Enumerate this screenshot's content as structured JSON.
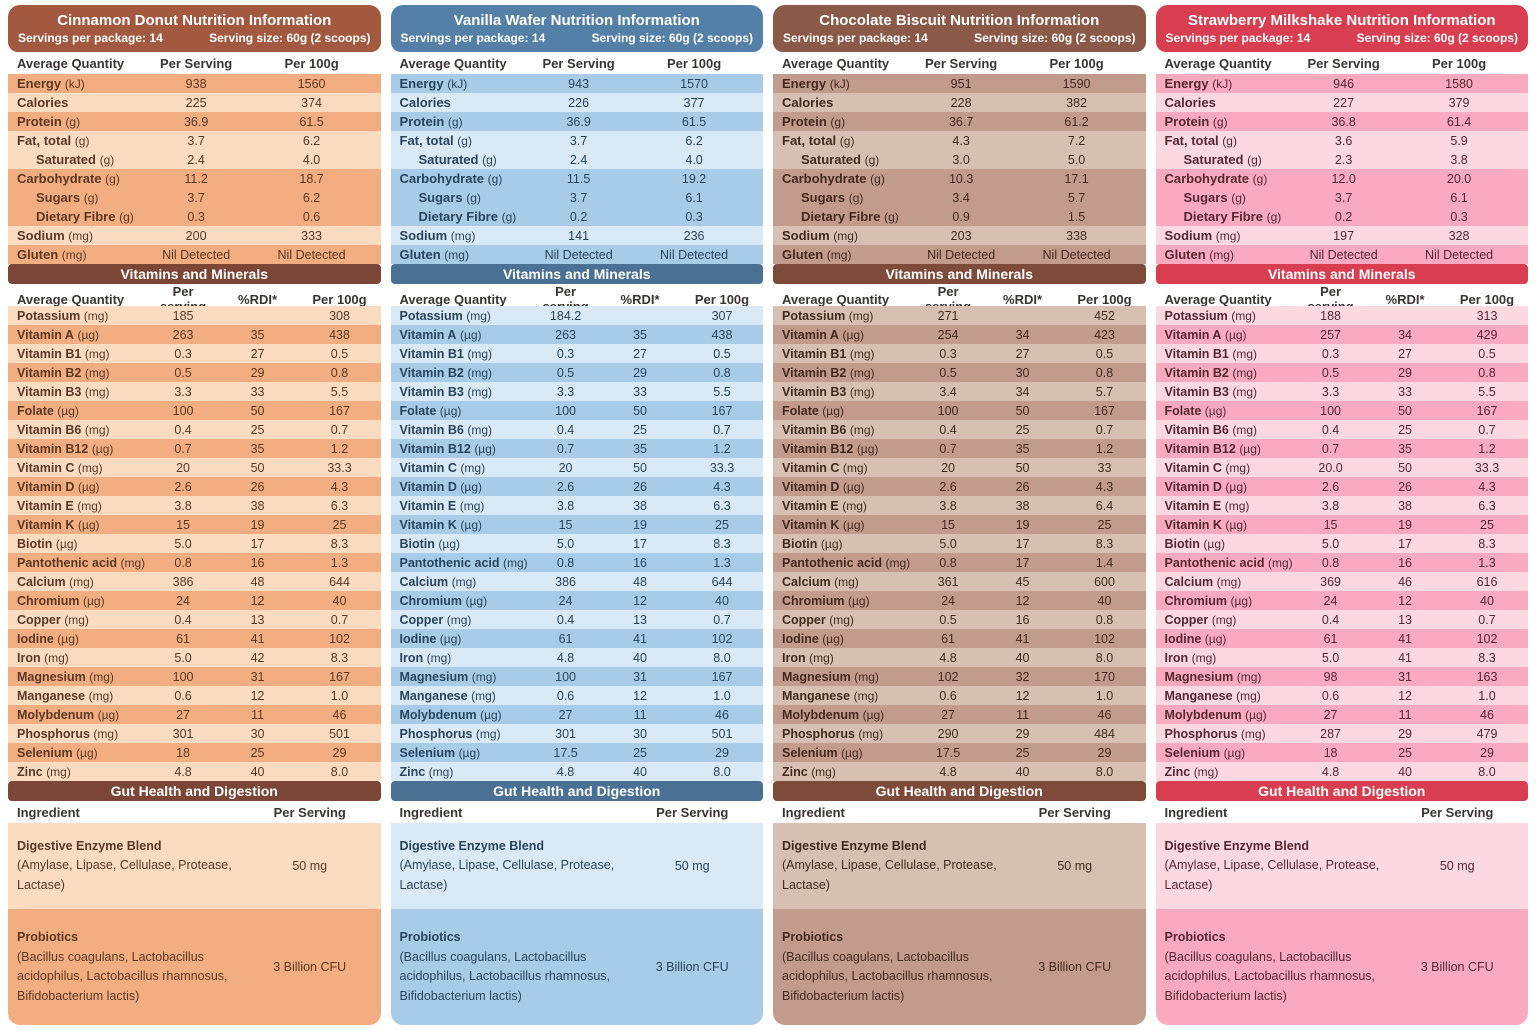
{
  "shared": {
    "servings": "Servings per package: 14",
    "serving_size": "Serving size: 60g (2 scoops)",
    "main_table": {
      "headers": [
        "Average Quantity",
        "Per Serving",
        "Per 100g"
      ],
      "rows": [
        {
          "name": "Energy",
          "unit": "(kJ)",
          "indent": false,
          "band": "dark"
        },
        {
          "name": "Calories",
          "unit": "",
          "indent": false,
          "band": "light"
        },
        {
          "name": "Protein",
          "unit": "(g)",
          "indent": false,
          "band": "dark"
        },
        {
          "name": "Fat, total",
          "unit": "(g)",
          "indent": false,
          "band": "light"
        },
        {
          "name": "Saturated",
          "unit": "(g)",
          "indent": true,
          "band": "light"
        },
        {
          "name": "Carbohydrate",
          "unit": "(g)",
          "indent": false,
          "band": "dark"
        },
        {
          "name": "Sugars",
          "unit": "(g)",
          "indent": true,
          "band": "dark"
        },
        {
          "name": "Dietary Fibre",
          "unit": "(g)",
          "indent": true,
          "band": "dark"
        },
        {
          "name": "Sodium",
          "unit": "(mg)",
          "indent": false,
          "band": "light"
        },
        {
          "name": "Gluten",
          "unit": "(mg)",
          "indent": false,
          "band": "dark"
        }
      ]
    },
    "vitamins_table": {
      "title": "Vitamins and Minerals",
      "headers": [
        "Average Quantity",
        "Per serving",
        "%RDI*",
        "Per 100g"
      ],
      "rows": [
        {
          "name": "Potassium",
          "unit": "(mg)"
        },
        {
          "name": "Vitamin A",
          "unit": "(µg)"
        },
        {
          "name": "Vitamin B1",
          "unit": "(mg)"
        },
        {
          "name": "Vitamin B2",
          "unit": "(mg)"
        },
        {
          "name": "Vitamin B3",
          "unit": "(mg)"
        },
        {
          "name": "Folate",
          "unit": "(µg)"
        },
        {
          "name": "Vitamin B6",
          "unit": "(mg)"
        },
        {
          "name": "Vitamin B12",
          "unit": "(µg)"
        },
        {
          "name": "Vitamin C",
          "unit": "(mg)"
        },
        {
          "name": "Vitamin D",
          "unit": "(µg)"
        },
        {
          "name": "Vitamin E",
          "unit": "(mg)"
        },
        {
          "name": "Vitamin K",
          "unit": "(µg)"
        },
        {
          "name": "Biotin",
          "unit": "(µg)"
        },
        {
          "name": "Pantothenic acid",
          "unit": "(mg)"
        },
        {
          "name": "Calcium",
          "unit": "(mg)"
        },
        {
          "name": "Chromium",
          "unit": "(µg)"
        },
        {
          "name": "Copper",
          "unit": "(mg)"
        },
        {
          "name": "Iodine",
          "unit": "(µg)"
        },
        {
          "name": "Iron",
          "unit": "(mg)"
        },
        {
          "name": "Magnesium",
          "unit": "(mg)"
        },
        {
          "name": "Manganese",
          "unit": "(mg)"
        },
        {
          "name": "Molybdenum",
          "unit": "(µg)"
        },
        {
          "name": "Phosphorus",
          "unit": "(mg)"
        },
        {
          "name": "Selenium",
          "unit": "(µg)"
        },
        {
          "name": "Zinc",
          "unit": "(mg)"
        }
      ]
    },
    "gut_table": {
      "title": "Gut Health and Digestion",
      "headers": [
        "Ingredient",
        "Per Serving"
      ],
      "rows": [
        {
          "name": "Digestive Enzyme Blend",
          "detail": "(Amylase, Lipase, Cellulase, Protease, Lactase)",
          "value": "50 mg"
        },
        {
          "name": "Probiotics",
          "detail": "(Bacillus coagulans, Lactobacillus acidophilus, Lactobacillus rhamnosus, Bifidobacterium lactis)",
          "value": "3 Billion CFU"
        }
      ]
    }
  },
  "panels": [
    {
      "id": "cinnamon-donut",
      "title": "Cinnamon Donut Nutrition Information",
      "colors": {
        "header": "#A2593F",
        "section": "#7B4636",
        "row_light": "#FBDCC1",
        "row_dark": "#F2AE81",
        "text": "#5C3823"
      },
      "main_values": [
        [
          "938",
          "1560"
        ],
        [
          "225",
          "374"
        ],
        [
          "36.9",
          "61.5"
        ],
        [
          "3.7",
          "6.2"
        ],
        [
          "2.4",
          "4.0"
        ],
        [
          "11.2",
          "18.7"
        ],
        [
          "3.7",
          "6.2"
        ],
        [
          "0.3",
          "0.6"
        ],
        [
          "200",
          "333"
        ],
        [
          "Nil Detected",
          "Nil Detected"
        ]
      ],
      "vitamin_values": [
        [
          "185",
          "",
          "308"
        ],
        [
          "263",
          "35",
          "438"
        ],
        [
          "0.3",
          "27",
          "0.5"
        ],
        [
          "0.5",
          "29",
          "0.8"
        ],
        [
          "3.3",
          "33",
          "5.5"
        ],
        [
          "100",
          "50",
          "167"
        ],
        [
          "0.4",
          "25",
          "0.7"
        ],
        [
          "0.7",
          "35",
          "1.2"
        ],
        [
          "20",
          "50",
          "33.3"
        ],
        [
          "2.6",
          "26",
          "4.3"
        ],
        [
          "3.8",
          "38",
          "6.3"
        ],
        [
          "15",
          "19",
          "25"
        ],
        [
          "5.0",
          "17",
          "8.3"
        ],
        [
          "0.8",
          "16",
          "1.3"
        ],
        [
          "386",
          "48",
          "644"
        ],
        [
          "24",
          "12",
          "40"
        ],
        [
          "0.4",
          "13",
          "0.7"
        ],
        [
          "61",
          "41",
          "102"
        ],
        [
          "5.0",
          "42",
          "8.3"
        ],
        [
          "100",
          "31",
          "167"
        ],
        [
          "0.6",
          "12",
          "1.0"
        ],
        [
          "27",
          "11",
          "46"
        ],
        [
          "301",
          "30",
          "501"
        ],
        [
          "18",
          "25",
          "29"
        ],
        [
          "4.8",
          "40",
          "8.0"
        ]
      ]
    },
    {
      "id": "vanilla-wafer",
      "title": "Vanilla Wafer Nutrition Information",
      "colors": {
        "header": "#5480A8",
        "section": "#4A7193",
        "row_light": "#D9E9F6",
        "row_dark": "#A8CBE7",
        "text": "#27455F"
      },
      "main_values": [
        [
          "943",
          "1570"
        ],
        [
          "226",
          "377"
        ],
        [
          "36.9",
          "61.5"
        ],
        [
          "3.7",
          "6.2"
        ],
        [
          "2.4",
          "4.0"
        ],
        [
          "11.5",
          "19.2"
        ],
        [
          "3.7",
          "6.1"
        ],
        [
          "0.2",
          "0.3"
        ],
        [
          "141",
          "236"
        ],
        [
          "Nil Detected",
          "Nil Detected"
        ]
      ],
      "vitamin_values": [
        [
          "184.2",
          "",
          "307"
        ],
        [
          "263",
          "35",
          "438"
        ],
        [
          "0.3",
          "27",
          "0.5"
        ],
        [
          "0.5",
          "29",
          "0.8"
        ],
        [
          "3.3",
          "33",
          "5.5"
        ],
        [
          "100",
          "50",
          "167"
        ],
        [
          "0.4",
          "25",
          "0.7"
        ],
        [
          "0.7",
          "35",
          "1.2"
        ],
        [
          "20",
          "50",
          "33.3"
        ],
        [
          "2.6",
          "26",
          "4.3"
        ],
        [
          "3.8",
          "38",
          "6.3"
        ],
        [
          "15",
          "19",
          "25"
        ],
        [
          "5.0",
          "17",
          "8.3"
        ],
        [
          "0.8",
          "16",
          "1.3"
        ],
        [
          "386",
          "48",
          "644"
        ],
        [
          "24",
          "12",
          "40"
        ],
        [
          "0.4",
          "13",
          "0.7"
        ],
        [
          "61",
          "41",
          "102"
        ],
        [
          "4.8",
          "40",
          "8.0"
        ],
        [
          "100",
          "31",
          "167"
        ],
        [
          "0.6",
          "12",
          "1.0"
        ],
        [
          "27",
          "11",
          "46"
        ],
        [
          "301",
          "30",
          "501"
        ],
        [
          "17.5",
          "25",
          "29"
        ],
        [
          "4.8",
          "40",
          "8.0"
        ]
      ]
    },
    {
      "id": "chocolate-biscuit",
      "title": "Chocolate Biscuit Nutrition Information",
      "colors": {
        "header": "#8A5947",
        "section": "#7E4B3B",
        "row_light": "#D7C0B1",
        "row_dark": "#C19C8C",
        "text": "#43291D"
      },
      "main_values": [
        [
          "951",
          "1590"
        ],
        [
          "228",
          "382"
        ],
        [
          "36.7",
          "61.2"
        ],
        [
          "4.3",
          "7.2"
        ],
        [
          "3.0",
          "5.0"
        ],
        [
          "10.3",
          "17.1"
        ],
        [
          "3.4",
          "5.7"
        ],
        [
          "0.9",
          "1.5"
        ],
        [
          "203",
          "338"
        ],
        [
          "Nil Detected",
          "Nil Detected"
        ]
      ],
      "vitamin_values": [
        [
          "271",
          "",
          "452"
        ],
        [
          "254",
          "34",
          "423"
        ],
        [
          "0.3",
          "27",
          "0.5"
        ],
        [
          "0.5",
          "30",
          "0.8"
        ],
        [
          "3.4",
          "34",
          "5.7"
        ],
        [
          "100",
          "50",
          "167"
        ],
        [
          "0.4",
          "25",
          "0.7"
        ],
        [
          "0.7",
          "35",
          "1.2"
        ],
        [
          "20",
          "50",
          "33"
        ],
        [
          "2.6",
          "26",
          "4.3"
        ],
        [
          "3.8",
          "38",
          "6.4"
        ],
        [
          "15",
          "19",
          "25"
        ],
        [
          "5.0",
          "17",
          "8.3"
        ],
        [
          "0.8",
          "17",
          "1.4"
        ],
        [
          "361",
          "45",
          "600"
        ],
        [
          "24",
          "12",
          "40"
        ],
        [
          "0.5",
          "16",
          "0.8"
        ],
        [
          "61",
          "41",
          "102"
        ],
        [
          "4.8",
          "40",
          "8.0"
        ],
        [
          "102",
          "32",
          "170"
        ],
        [
          "0.6",
          "12",
          "1.0"
        ],
        [
          "27",
          "11",
          "46"
        ],
        [
          "290",
          "29",
          "484"
        ],
        [
          "17.5",
          "25",
          "29"
        ],
        [
          "4.8",
          "40",
          "8.0"
        ]
      ]
    },
    {
      "id": "strawberry-milkshake",
      "title": "Strawberry Milkshake Nutrition Information",
      "colors": {
        "header": "#D83E4F",
        "section": "#D83E4F",
        "row_light": "#FCD8E1",
        "row_dark": "#FAAABF",
        "text": "#54282E"
      },
      "main_values": [
        [
          "946",
          "1580"
        ],
        [
          "227",
          "379"
        ],
        [
          "36.8",
          "61.4"
        ],
        [
          "3.6",
          "5.9"
        ],
        [
          "2.3",
          "3.8"
        ],
        [
          "12.0",
          "20.0"
        ],
        [
          "3.7",
          "6.1"
        ],
        [
          "0.2",
          "0.3"
        ],
        [
          "197",
          "328"
        ],
        [
          "Nil Detected",
          "Nil Detected"
        ]
      ],
      "vitamin_values": [
        [
          "188",
          "",
          "313"
        ],
        [
          "257",
          "34",
          "429"
        ],
        [
          "0.3",
          "27",
          "0.5"
        ],
        [
          "0.5",
          "29",
          "0.8"
        ],
        [
          "3.3",
          "33",
          "5.5"
        ],
        [
          "100",
          "50",
          "167"
        ],
        [
          "0.4",
          "25",
          "0.7"
        ],
        [
          "0.7",
          "35",
          "1.2"
        ],
        [
          "20.0",
          "50",
          "33.3"
        ],
        [
          "2.6",
          "26",
          "4.3"
        ],
        [
          "3.8",
          "38",
          "6.3"
        ],
        [
          "15",
          "19",
          "25"
        ],
        [
          "5.0",
          "17",
          "8.3"
        ],
        [
          "0.8",
          "16",
          "1.3"
        ],
        [
          "369",
          "46",
          "616"
        ],
        [
          "24",
          "12",
          "40"
        ],
        [
          "0.4",
          "13",
          "0.7"
        ],
        [
          "61",
          "41",
          "102"
        ],
        [
          "5.0",
          "41",
          "8.3"
        ],
        [
          "98",
          "31",
          "163"
        ],
        [
          "0.6",
          "12",
          "1.0"
        ],
        [
          "27",
          "11",
          "46"
        ],
        [
          "287",
          "29",
          "479"
        ],
        [
          "18",
          "25",
          "29"
        ],
        [
          "4.8",
          "40",
          "8.0"
        ]
      ]
    }
  ]
}
